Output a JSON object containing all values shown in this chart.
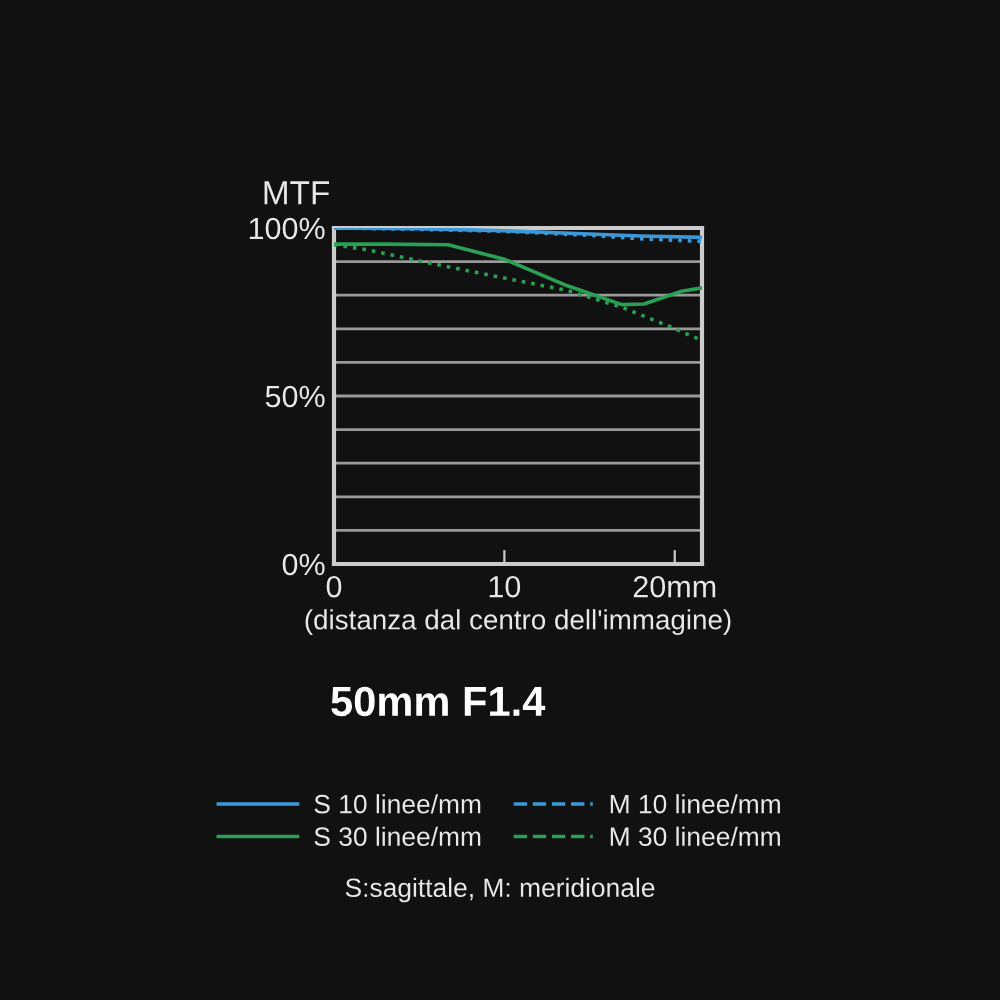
{
  "chart_data": {
    "type": "line",
    "title": "50mm F1.4",
    "ylabel": "MTF",
    "xlabel": "(distanza dal centro dell'immagine)",
    "annotations": [
      "S:sagittale, M: meridionale"
    ],
    "xlim": [
      0,
      21.6
    ],
    "xticks": [
      0,
      10,
      {
        "value": 20,
        "label": "20mm"
      }
    ],
    "ylim": [
      0,
      100
    ],
    "yticks": [
      {
        "value": 0,
        "label": "0%"
      },
      {
        "value": 10,
        "label": null
      },
      {
        "value": 20,
        "label": null
      },
      {
        "value": 30,
        "label": null
      },
      {
        "value": 40,
        "label": null
      },
      {
        "value": 50,
        "label": "50%"
      },
      {
        "value": 60,
        "label": null
      },
      {
        "value": 70,
        "label": null
      },
      {
        "value": 80,
        "label": null
      },
      {
        "value": 90,
        "label": null
      },
      {
        "value": 100,
        "label": "100%"
      }
    ],
    "grid": "y",
    "legend": "bottom",
    "series": [
      {
        "name": "S 10 linee/mm",
        "color": "#3a9ad9",
        "line_style": "solid",
        "x": [
          0,
          5,
          10,
          15,
          18,
          21.6
        ],
        "values": [
          100,
          99.8,
          99.2,
          98.2,
          97.6,
          97.2
        ]
      },
      {
        "name": "S 30 linee/mm",
        "color": "#2aa055",
        "line_style": "solid",
        "x": [
          0,
          3,
          6.7,
          10,
          13.7,
          16.9,
          18.2,
          20.4,
          21.6
        ],
        "values": [
          95.2,
          95.2,
          95,
          90.7,
          82.8,
          77.2,
          77.4,
          81.2,
          82.2
        ]
      },
      {
        "name": "M 10 linee/mm",
        "color": "#3a9ad9",
        "line_style": "dotted",
        "x": [
          0,
          5,
          10,
          15,
          18,
          21.6
        ],
        "values": [
          100,
          99.6,
          99,
          97.8,
          96.8,
          96
        ]
      },
      {
        "name": "M 30 linee/mm",
        "color": "#2aa055",
        "line_style": "dotted",
        "x": [
          0,
          2,
          4.7,
          10,
          13.7,
          16.9,
          19.6,
          21.6
        ],
        "values": [
          95,
          93.5,
          90.5,
          85.1,
          81.4,
          76.4,
          70.9,
          66.5
        ]
      }
    ]
  }
}
